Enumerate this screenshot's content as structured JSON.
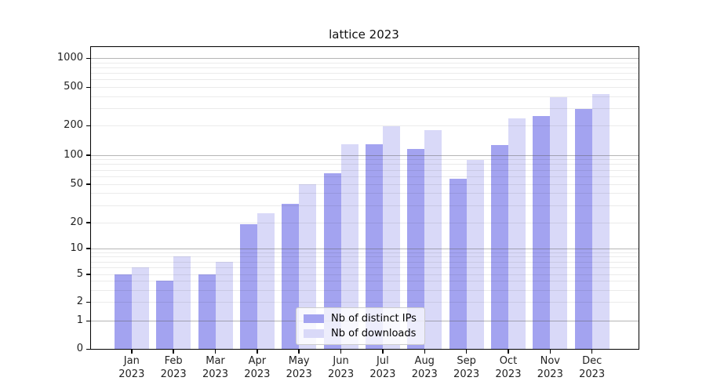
{
  "title": "lattice 2023",
  "chart_data": {
    "type": "bar",
    "title": "lattice 2023",
    "categories": [
      "Jan 2023",
      "Feb 2023",
      "Mar 2023",
      "Apr 2023",
      "May 2023",
      "Jun 2023",
      "Jul 2023",
      "Aug 2023",
      "Sep 2023",
      "Oct 2023",
      "Nov 2023",
      "Dec 2023"
    ],
    "series": [
      {
        "name": "Nb of distinct IPs",
        "color": "#a3a3f0",
        "values": [
          5,
          4,
          5,
          19,
          31,
          65,
          128,
          115,
          57,
          127,
          250,
          295
        ]
      },
      {
        "name": "Nb of downloads",
        "color": "#d9d9f8",
        "values": [
          6,
          8,
          7,
          25,
          50,
          128,
          195,
          180,
          88,
          235,
          395,
          420
        ]
      }
    ],
    "xlabel": "",
    "ylabel": "",
    "yscale": "log-like with 0 baseline",
    "ytick_values": [
      1000,
      500,
      200,
      100,
      50,
      20,
      10,
      5,
      2,
      1,
      0
    ],
    "ytick_labels": [
      "1000",
      "500",
      "200",
      "100",
      "50",
      "20",
      "10",
      "5",
      "2",
      "1",
      "0"
    ],
    "ylim": [
      0,
      1300
    ],
    "grid": "horizontal major and minor gridlines",
    "legend_position": "lower center"
  }
}
